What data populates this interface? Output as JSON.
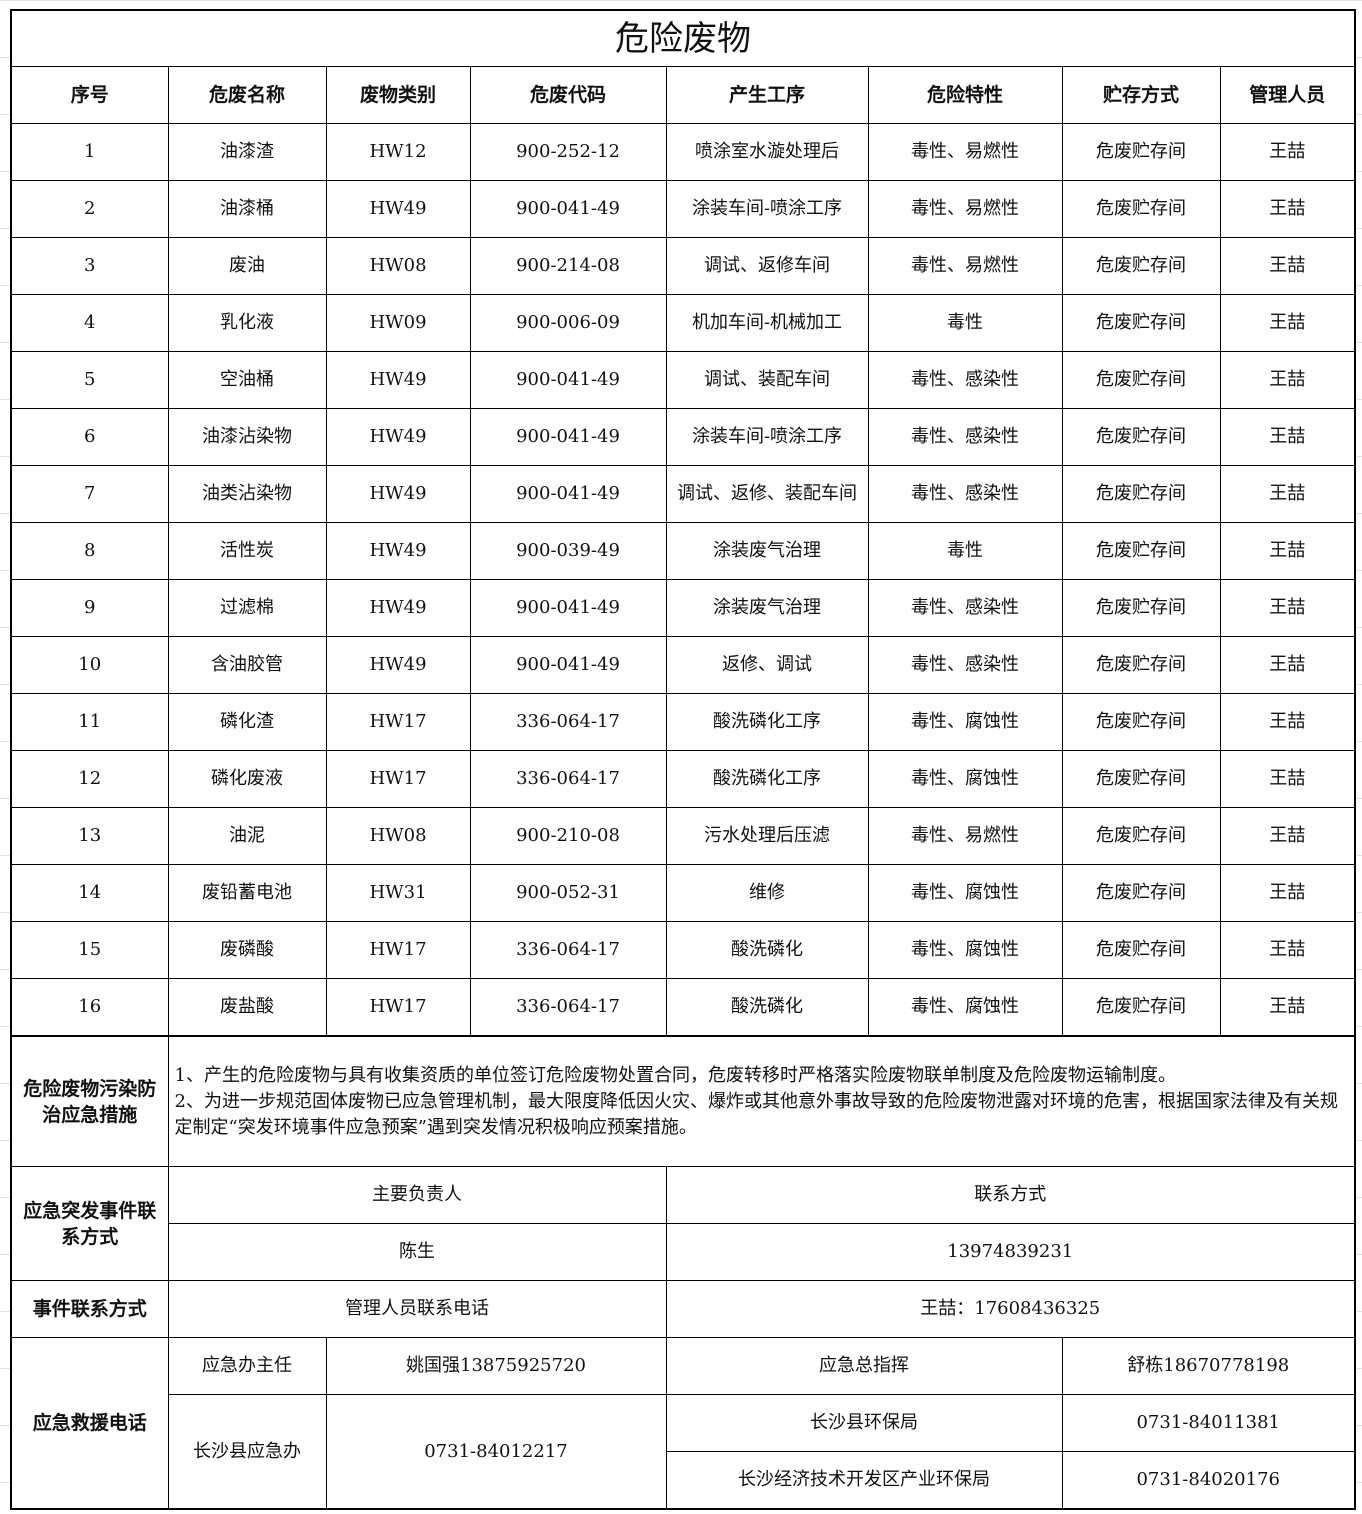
{
  "title": "危险废物",
  "headers": [
    "序号",
    "危废名称",
    "废物类别",
    "危废代码",
    "产生工序",
    "危险特性",
    "贮存方式",
    "管理人员"
  ],
  "rows": [
    [
      "1",
      "油漆渣",
      "HW12",
      "900-252-12",
      "喷涂室水漩处理后",
      "毒性、易燃性",
      "危废贮存间",
      "王喆"
    ],
    [
      "2",
      "油漆桶",
      "HW49",
      "900-041-49",
      "涂装车间-喷涂工序",
      "毒性、易燃性",
      "危废贮存间",
      "王喆"
    ],
    [
      "3",
      "废油",
      "HW08",
      "900-214-08",
      "调试、返修车间",
      "毒性、易燃性",
      "危废贮存间",
      "王喆"
    ],
    [
      "4",
      "乳化液",
      "HW09",
      "900-006-09",
      "机加车间-机械加工",
      "毒性",
      "危废贮存间",
      "王喆"
    ],
    [
      "5",
      "空油桶",
      "HW49",
      "900-041-49",
      "调试、装配车间",
      "毒性、感染性",
      "危废贮存间",
      "王喆"
    ],
    [
      "6",
      "油漆沾染物",
      "HW49",
      "900-041-49",
      "涂装车间-喷涂工序",
      "毒性、感染性",
      "危废贮存间",
      "王喆"
    ],
    [
      "7",
      "油类沾染物",
      "HW49",
      "900-041-49",
      "调试、返修、装配车间",
      "毒性、感染性",
      "危废贮存间",
      "王喆"
    ],
    [
      "8",
      "活性炭",
      "HW49",
      "900-039-49",
      "涂装废气治理",
      "毒性",
      "危废贮存间",
      "王喆"
    ],
    [
      "9",
      "过滤棉",
      "HW49",
      "900-041-49",
      "涂装废气治理",
      "毒性、感染性",
      "危废贮存间",
      "王喆"
    ],
    [
      "10",
      "含油胶管",
      "HW49",
      "900-041-49",
      "返修、调试",
      "毒性、感染性",
      "危废贮存间",
      "王喆"
    ],
    [
      "11",
      "磷化渣",
      "HW17",
      "336-064-17",
      "酸洗磷化工序",
      "毒性、腐蚀性",
      "危废贮存间",
      "王喆"
    ],
    [
      "12",
      "磷化废液",
      "HW17",
      "336-064-17",
      "酸洗磷化工序",
      "毒性、腐蚀性",
      "危废贮存间",
      "王喆"
    ],
    [
      "13",
      "油泥",
      "HW08",
      "900-210-08",
      "污水处理后压滤",
      "毒性、易燃性",
      "危废贮存间",
      "王喆"
    ],
    [
      "14",
      "废铅蓄电池",
      "HW31",
      "900-052-31",
      "维修",
      "毒性、腐蚀性",
      "危废贮存间",
      "王喆"
    ],
    [
      "15",
      "废磷酸",
      "HW17",
      "336-064-17",
      "酸洗磷化",
      "毒性、腐蚀性",
      "危废贮存间",
      "王喆"
    ],
    [
      "16",
      "废盐酸",
      "HW17",
      "336-064-17",
      "酸洗磷化",
      "毒性、腐蚀性",
      "危废贮存间",
      "王喆"
    ]
  ],
  "measures": {
    "label": "危险废物污染防治应急措施",
    "line1": "1、产生的危险废物与具有收集资质的单位签订危险废物处置合同，危废转移时严格落实险废物联单制度及危险废物运输制度。",
    "line2": "2、为进一步规范固体废物已应急管理机制，最大限度降低因火灾、爆炸或其他意外事故导致的危险废物泄露对环境的危害，根据国家法律及有关规定制定“突发环境事件应急预案”遇到突发情况积极响应预案措施。"
  },
  "emergency_contact": {
    "label": "应急突发事件联系方式",
    "person_header": "主要负责人",
    "contact_header": "联系方式",
    "person": "陈生",
    "phone": "13974839231"
  },
  "event_contact": {
    "label": "事件联系方式",
    "desc": "管理人员联系电话",
    "value": "王喆：17608436325"
  },
  "rescue": {
    "label": "应急救援电话",
    "office_director_label": "应急办主任",
    "office_director": "姚国强13875925720",
    "commander_label": "应急总指挥",
    "commander": "舒栋18670778198",
    "county_office": "长沙县应急办",
    "county_office_phone": "0731-84012217",
    "env_bureau": "长沙县环保局",
    "env_bureau_phone": "0731-84011381",
    "dev_zone_bureau": "长沙经济技术开发区产业环保局",
    "dev_zone_bureau_phone": "0731-84020176"
  }
}
